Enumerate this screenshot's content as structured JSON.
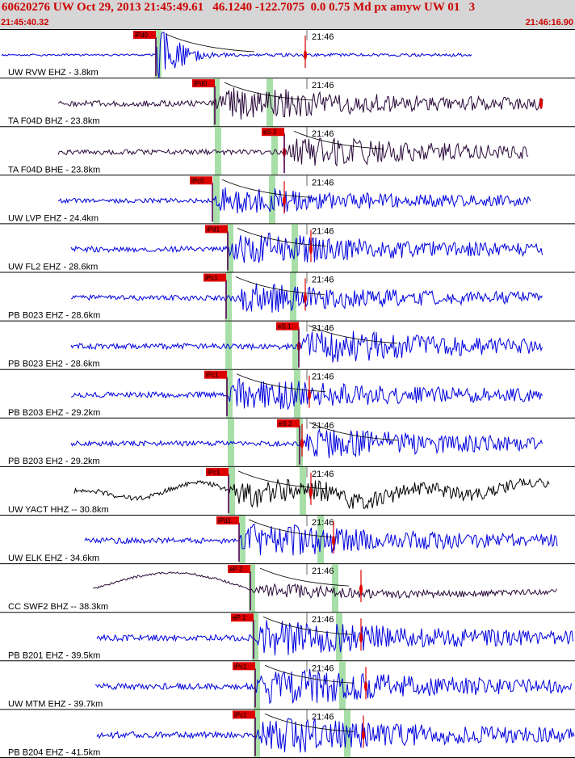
{
  "header": {
    "title": "60620276 UW Oct 29, 2013 21:45:49.61   46.1240 -122.7075  0.0 0.75 Md px amyw UW 01   3",
    "start_time": "21:45:40.32",
    "end_time": "21:46:16.90"
  },
  "minute_label": "21:46",
  "colors": {
    "header_bg": "#d6d6d6",
    "title": "#cc0000",
    "blue": "#0000dd",
    "dark": "#2a0a3a",
    "black": "#000000",
    "pick_box": "#dd0000",
    "phase_band": "#a8dfa8"
  },
  "traces": [
    {
      "label": "UW RVW EHZ",
      "sep": "-",
      "dist": "3.8km",
      "pick": "iPd0",
      "color": "blue"
    },
    {
      "label": "TA F04D BHZ",
      "sep": "-",
      "dist": "23.8km",
      "pick": "iPd0",
      "color": "dark"
    },
    {
      "label": "TA F04D BHE",
      "sep": "-",
      "dist": "23.8km",
      "pick": "eS 2",
      "color": "dark"
    },
    {
      "label": "UW LVP EHZ",
      "sep": "-",
      "dist": "24.4km",
      "pick": "iPc0",
      "color": "blue"
    },
    {
      "label": "UW FL2 EHZ",
      "sep": "-",
      "dist": "28.6km",
      "pick": "iPd1",
      "color": "blue"
    },
    {
      "label": "PB B023 EHZ",
      "sep": "-",
      "dist": "28.6km",
      "pick": "iPc1",
      "color": "blue"
    },
    {
      "label": "PB B023 EH2",
      "sep": "-",
      "dist": "28.6km",
      "pick": "eS 1",
      "color": "blue"
    },
    {
      "label": "PB B203 EHZ",
      "sep": "-",
      "dist": "29.2km",
      "pick": "iPc1",
      "color": "blue"
    },
    {
      "label": "PB B203 EH2",
      "sep": "-",
      "dist": "29.2km",
      "pick": "eS 2",
      "color": "blue"
    },
    {
      "label": "UW YACT HHZ",
      "sep": "--",
      "dist": "30.8km",
      "pick": "iPc1",
      "color": "black"
    },
    {
      "label": "UW ELK EHZ",
      "sep": "-",
      "dist": "34.6km",
      "pick": "iPd1",
      "color": "blue"
    },
    {
      "label": "CC SWF2 BHZ",
      "sep": "--",
      "dist": "38.3km",
      "pick": "eP 2",
      "color": "dark"
    },
    {
      "label": "PB B201 EHZ",
      "sep": "-",
      "dist": "39.5km",
      "pick": "eP 1",
      "color": "blue"
    },
    {
      "label": "UW MTM EHZ",
      "sep": "-",
      "dist": "39.7km",
      "pick": "iPc1",
      "color": "blue"
    },
    {
      "label": "PB B204 EHZ",
      "sep": "-",
      "dist": "41.5km",
      "pick": "iPc1",
      "color": "blue"
    }
  ]
}
